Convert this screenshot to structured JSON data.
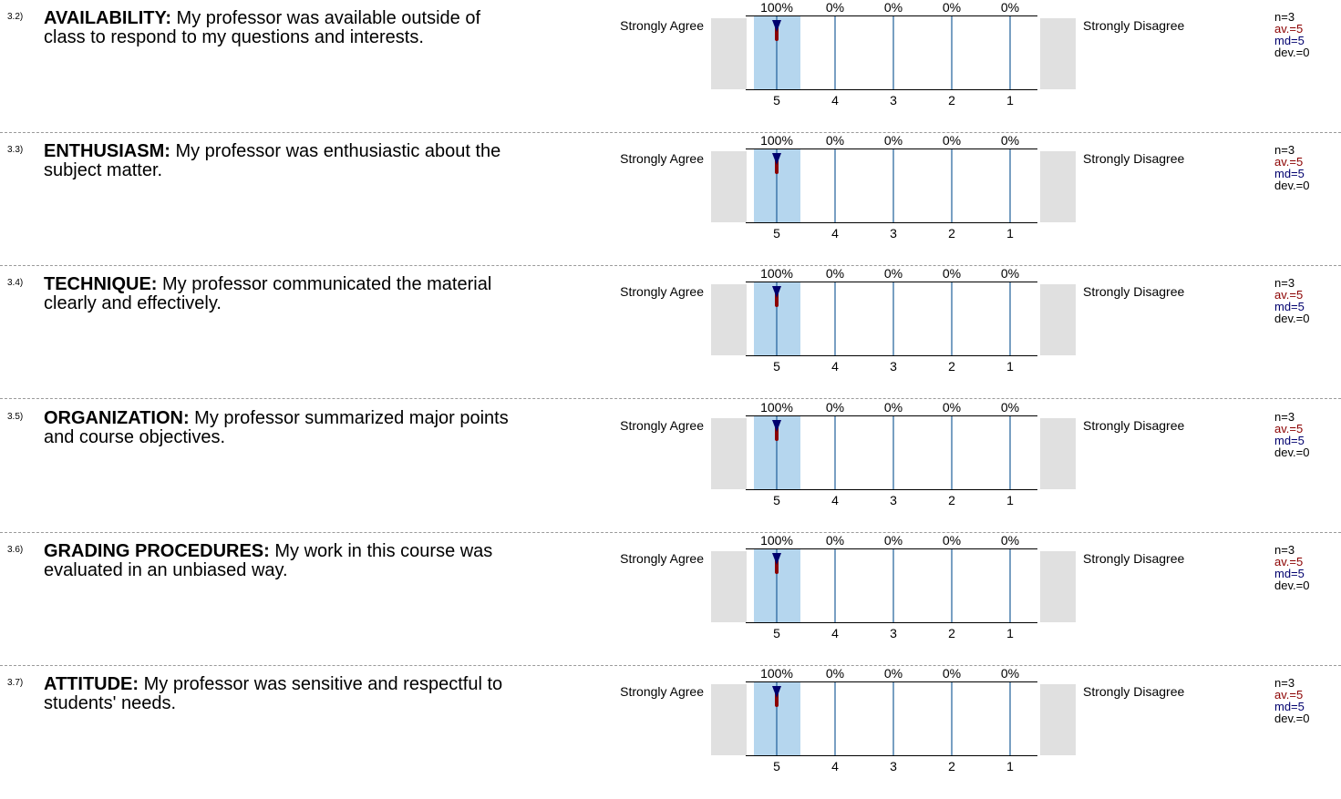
{
  "scale": {
    "left_label": "Strongly Agree",
    "right_label": "Strongly Disagree",
    "categories": [
      "5",
      "4",
      "3",
      "2",
      "1"
    ]
  },
  "questions": [
    {
      "number": "3.2)",
      "title": "AVAILABILITY:",
      "text": " My professor was available outside of class to respond to my questions and interests.",
      "percentages": [
        "100%",
        "0%",
        "0%",
        "0%",
        "0%"
      ],
      "stats": {
        "n": "n=3",
        "av": "av.=5",
        "md": "md=5",
        "dev": "dev.=0"
      }
    },
    {
      "number": "3.3)",
      "title": "ENTHUSIASM:",
      "text": " My professor was enthusiastic about the subject matter.",
      "percentages": [
        "100%",
        "0%",
        "0%",
        "0%",
        "0%"
      ],
      "stats": {
        "n": "n=3",
        "av": "av.=5",
        "md": "md=5",
        "dev": "dev.=0"
      }
    },
    {
      "number": "3.4)",
      "title": "TECHNIQUE:",
      "text": " My professor communicated the material clearly and effectively.",
      "percentages": [
        "100%",
        "0%",
        "0%",
        "0%",
        "0%"
      ],
      "stats": {
        "n": "n=3",
        "av": "av.=5",
        "md": "md=5",
        "dev": "dev.=0"
      }
    },
    {
      "number": "3.5)",
      "title": "ORGANIZATION:",
      "text": " My professor summarized major points and course objectives.",
      "percentages": [
        "100%",
        "0%",
        "0%",
        "0%",
        "0%"
      ],
      "stats": {
        "n": "n=3",
        "av": "av.=5",
        "md": "md=5",
        "dev": "dev.=0"
      }
    },
    {
      "number": "3.6)",
      "title": "GRADING PROCEDURES:",
      "text": " My work in this course was evaluated in an unbiased way.",
      "percentages": [
        "100%",
        "0%",
        "0%",
        "0%",
        "0%"
      ],
      "stats": {
        "n": "n=3",
        "av": "av.=5",
        "md": "md=5",
        "dev": "dev.=0"
      }
    },
    {
      "number": "3.7)",
      "title": "ATTITUDE:",
      "text": " My professor was sensitive and respectful to students' needs.",
      "percentages": [
        "100%",
        "0%",
        "0%",
        "0%",
        "0%"
      ],
      "stats": {
        "n": "n=3",
        "av": "av.=5",
        "md": "md=5",
        "dev": "dev.=0"
      }
    }
  ],
  "colors": {
    "bar": "#b5d6ee",
    "gridline": "#1f5f99",
    "average": "#8b0000",
    "median": "#00006e",
    "panel": "#e0e0e0"
  },
  "chart_data": [
    {
      "type": "bar",
      "categories": [
        "5",
        "4",
        "3",
        "2",
        "1"
      ],
      "values": [
        100,
        0,
        0,
        0,
        0
      ],
      "ylim": [
        0,
        100
      ],
      "average": 5,
      "median": 5,
      "deviation": 0,
      "n": 3
    },
    {
      "type": "bar",
      "categories": [
        "5",
        "4",
        "3",
        "2",
        "1"
      ],
      "values": [
        100,
        0,
        0,
        0,
        0
      ],
      "ylim": [
        0,
        100
      ],
      "average": 5,
      "median": 5,
      "deviation": 0,
      "n": 3
    },
    {
      "type": "bar",
      "categories": [
        "5",
        "4",
        "3",
        "2",
        "1"
      ],
      "values": [
        100,
        0,
        0,
        0,
        0
      ],
      "ylim": [
        0,
        100
      ],
      "average": 5,
      "median": 5,
      "deviation": 0,
      "n": 3
    },
    {
      "type": "bar",
      "categories": [
        "5",
        "4",
        "3",
        "2",
        "1"
      ],
      "values": [
        100,
        0,
        0,
        0,
        0
      ],
      "ylim": [
        0,
        100
      ],
      "average": 5,
      "median": 5,
      "deviation": 0,
      "n": 3
    },
    {
      "type": "bar",
      "categories": [
        "5",
        "4",
        "3",
        "2",
        "1"
      ],
      "values": [
        100,
        0,
        0,
        0,
        0
      ],
      "ylim": [
        0,
        100
      ],
      "average": 5,
      "median": 5,
      "deviation": 0,
      "n": 3
    },
    {
      "type": "bar",
      "categories": [
        "5",
        "4",
        "3",
        "2",
        "1"
      ],
      "values": [
        100,
        0,
        0,
        0,
        0
      ],
      "ylim": [
        0,
        100
      ],
      "average": 5,
      "median": 5,
      "deviation": 0,
      "n": 3
    }
  ]
}
